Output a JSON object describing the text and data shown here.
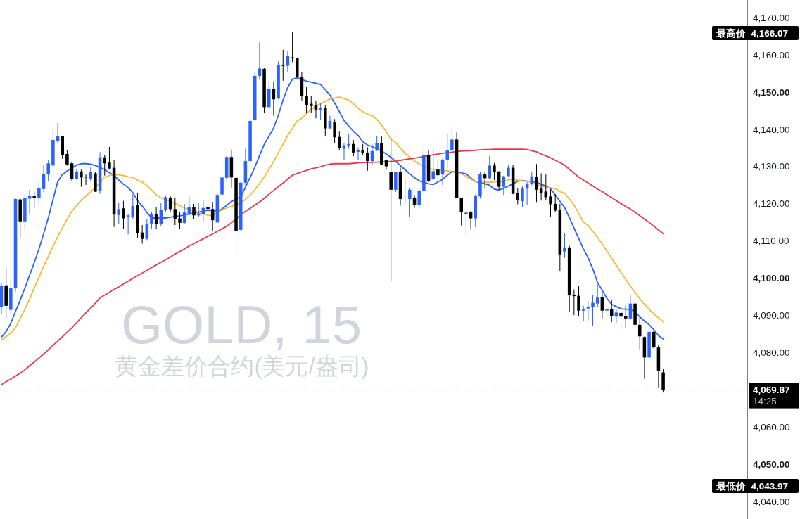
{
  "chart_data": {
    "type": "candlestick",
    "title": "GOLD, 15",
    "subtitle": "黄金差价合约(美元/盎司)",
    "categories": [
      null,
      null,
      null,
      null,
      null,
      null,
      null,
      null,
      null,
      null,
      null,
      null,
      null,
      null,
      null,
      null,
      null,
      null,
      null,
      null,
      null,
      null,
      null,
      null,
      null,
      null,
      null,
      null,
      null,
      null,
      null,
      null,
      null,
      null,
      null,
      null,
      null,
      null,
      null,
      null,
      null,
      null,
      null,
      null,
      null,
      null,
      null,
      null,
      null,
      null,
      null,
      null,
      null,
      null,
      null,
      null,
      null,
      null,
      null,
      null,
      null,
      null,
      null,
      null,
      null,
      null,
      null,
      null,
      null,
      null,
      null,
      null,
      null,
      null,
      null,
      null,
      null,
      null,
      null,
      null,
      null,
      null,
      null,
      null,
      null,
      null,
      null,
      null,
      null,
      null,
      null,
      null,
      null,
      null,
      null,
      null,
      null,
      null,
      null,
      null,
      null,
      null,
      null,
      null,
      null,
      null,
      null,
      null,
      null,
      null,
      null,
      null,
      null,
      null,
      null,
      null,
      null,
      null,
      null,
      null,
      null,
      null,
      null,
      null,
      null,
      null,
      null,
      null,
      null,
      null,
      null,
      null,
      null,
      null,
      null,
      null,
      null,
      null,
      null,
      null,
      null,
      null
    ],
    "ohlc": [
      [
        4092.2,
        4098.5,
        4090.3,
        4097.9
      ],
      [
        4098.0,
        4102.6,
        4089.2,
        4092.5
      ],
      [
        4091.4,
        4099.1,
        4090.6,
        4097.2
      ],
      [
        4097.2,
        4121.5,
        4096.3,
        4121.2
      ],
      [
        4121.1,
        4121.5,
        4110.8,
        4115.2
      ],
      [
        4115.2,
        4122.4,
        4112.7,
        4121.4
      ],
      [
        4121.3,
        4123.7,
        4117.1,
        4122.1
      ],
      [
        4122.0,
        4123.2,
        4118.7,
        4121.6
      ],
      [
        4121.5,
        4125.9,
        4119.6,
        4124.1
      ],
      [
        4123.9,
        4130.3,
        4123.1,
        4128.0
      ],
      [
        4127.9,
        4131.6,
        4126.1,
        4130.8
      ],
      [
        4130.2,
        4140.4,
        4129.1,
        4137.1
      ],
      [
        4136.8,
        4141.6,
        4136.3,
        4138.1
      ],
      [
        4138.1,
        4138.2,
        4132.0,
        4133.1
      ],
      [
        4133.3,
        4134.3,
        4130.2,
        4130.5
      ],
      [
        4130.8,
        4131.3,
        4126.1,
        4126.5
      ],
      [
        4126.7,
        4129.1,
        4126.4,
        4128.6
      ],
      [
        4128.6,
        4129.1,
        4124.5,
        4127.0
      ],
      [
        4127.2,
        4127.8,
        4125.0,
        4127.0
      ],
      [
        4126.5,
        4129.7,
        4125.9,
        4128.4
      ],
      [
        4128.1,
        4128.4,
        4123.1,
        4123.2
      ],
      [
        4123.4,
        4133.8,
        4122.6,
        4132.4
      ],
      [
        4132.4,
        4133.1,
        4127.5,
        4130.8
      ],
      [
        4131.0,
        4135.2,
        4129.1,
        4129.4
      ],
      [
        4129.6,
        4131.8,
        4113.7,
        4117.1
      ],
      [
        4116.9,
        4120.2,
        4114.6,
        4118.5
      ],
      [
        4118.7,
        4120.7,
        4113.1,
        4116.0
      ],
      [
        4116.5,
        4117.1,
        4111.7,
        4116.8
      ],
      [
        4116.3,
        4122.4,
        4115.8,
        4119.3
      ],
      [
        4119.5,
        4122.9,
        4110.8,
        4112.0
      ],
      [
        4112.2,
        4114.2,
        4109.2,
        4110.5
      ],
      [
        4110.5,
        4115.8,
        4110.2,
        4114.4
      ],
      [
        4114.6,
        4117.7,
        4113.3,
        4117.1
      ],
      [
        4117.2,
        4119.0,
        4113.1,
        4114.4
      ],
      [
        4114.4,
        4120.1,
        4114.0,
        4118.2
      ],
      [
        4118.2,
        4122.1,
        4117.7,
        4121.7
      ],
      [
        4121.6,
        4122.1,
        4117.7,
        4118.5
      ],
      [
        4118.5,
        4121.6,
        4114.2,
        4115.8
      ],
      [
        4116.0,
        4117.7,
        4113.1,
        4114.8
      ],
      [
        4114.8,
        4119.9,
        4114.6,
        4117.6
      ],
      [
        4117.0,
        4121.8,
        4116.8,
        4119.1
      ],
      [
        4119.0,
        4119.9,
        4115.8,
        4116.8
      ],
      [
        4116.8,
        4120.2,
        4116.3,
        4117.3
      ],
      [
        4117.1,
        4120.9,
        4115.2,
        4118.8
      ],
      [
        4119.0,
        4122.9,
        4117.4,
        4118.5
      ],
      [
        4118.5,
        4120.4,
        4112.5,
        4115.5
      ],
      [
        4114.9,
        4122.9,
        4114.8,
        4122.3
      ],
      [
        4122.4,
        4127.4,
        4121.8,
        4127.0
      ],
      [
        4126.9,
        4132.8,
        4126.2,
        4132.5
      ],
      [
        4132.5,
        4134.3,
        4124.3,
        4127.0
      ],
      [
        4126.9,
        4127.5,
        4105.8,
        4112.7
      ],
      [
        4112.9,
        4125.9,
        4112.7,
        4125.6
      ],
      [
        4125.6,
        4134.7,
        4124.9,
        4131.4
      ],
      [
        4131.4,
        4146.7,
        4131.2,
        4142.2
      ],
      [
        4142.5,
        4155.5,
        4142.3,
        4154.3
      ],
      [
        4154.3,
        4163.3,
        4153.3,
        4156.3
      ],
      [
        4156.2,
        4156.5,
        4144.4,
        4145.9
      ],
      [
        4145.9,
        4152.8,
        4145.7,
        4150.7
      ],
      [
        4150.7,
        4152.8,
        4143.6,
        4148.0
      ],
      [
        4148.3,
        4158.2,
        4148.0,
        4157.3
      ],
      [
        4157.3,
        4161.3,
        4153.0,
        4157.0
      ],
      [
        4157.0,
        4160.9,
        4155.2,
        4159.6
      ],
      [
        4159.3,
        4166.07,
        4158.0,
        4159.0
      ],
      [
        4159.1,
        4159.2,
        4153.8,
        4154.1
      ],
      [
        4154.1,
        4155.3,
        4147.7,
        4148.9
      ],
      [
        4149.0,
        4151.3,
        4144.4,
        4146.5
      ],
      [
        4146.8,
        4148.9,
        4144.4,
        4146.2
      ],
      [
        4146.5,
        4147.7,
        4142.9,
        4145.1
      ],
      [
        4145.2,
        4146.9,
        4142.5,
        4145.7
      ],
      [
        4145.6,
        4146.4,
        4138.2,
        4140.2
      ],
      [
        4140.2,
        4143.6,
        4140.1,
        4142.2
      ],
      [
        4142.0,
        4142.7,
        4136.3,
        4137.8
      ],
      [
        4137.9,
        4139.5,
        4134.4,
        4134.9
      ],
      [
        4134.7,
        4136.3,
        4131.6,
        4135.6
      ],
      [
        4135.6,
        4138.8,
        4134.7,
        4136.0
      ],
      [
        4136.0,
        4137.1,
        4132.7,
        4133.7
      ],
      [
        4133.9,
        4135.1,
        4131.6,
        4134.3
      ],
      [
        4134.3,
        4136.0,
        4132.9,
        4133.7
      ],
      [
        4133.7,
        4135.1,
        4128.8,
        4131.4
      ],
      [
        4131.4,
        4135.9,
        4130.3,
        4134.1
      ],
      [
        4134.4,
        4138.1,
        4134.1,
        4136.2
      ],
      [
        4136.3,
        4138.1,
        4130.3,
        4130.5
      ],
      [
        4131.6,
        4131.8,
        4129.1,
        4130.0
      ],
      [
        4128.4,
        4137.6,
        4099.1,
        4123.7
      ],
      [
        4123.7,
        4128.6,
        4123.1,
        4128.4
      ],
      [
        4128.4,
        4129.7,
        4119.4,
        4121.2
      ],
      [
        4121.5,
        4126.5,
        4119.9,
        4121.6
      ],
      [
        4121.2,
        4124.3,
        4116.3,
        4123.7
      ],
      [
        4121.6,
        4122.3,
        4118.8,
        4119.6
      ],
      [
        4119.6,
        4124.3,
        4118.7,
        4123.5
      ],
      [
        4123.4,
        4134.1,
        4122.4,
        4133.1
      ],
      [
        4133.1,
        4134.4,
        4125.7,
        4126.1
      ],
      [
        4126.5,
        4134.7,
        4126.3,
        4128.7
      ],
      [
        4129.1,
        4132.0,
        4126.8,
        4127.6
      ],
      [
        4127.8,
        4132.2,
        4125.0,
        4131.8
      ],
      [
        4131.8,
        4138.9,
        4129.4,
        4134.3
      ],
      [
        4134.3,
        4140.8,
        4133.9,
        4137.2
      ],
      [
        4137.2,
        4139.1,
        4121.4,
        4121.5
      ],
      [
        4121.5,
        4121.6,
        4114.1,
        4117.7
      ],
      [
        4117.5,
        4117.7,
        4111.7,
        4117.4
      ],
      [
        4117.6,
        4118.0,
        4113.2,
        4116.0
      ],
      [
        4116.0,
        4122.4,
        4113.6,
        4122.1
      ],
      [
        4121.9,
        4128.6,
        4121.3,
        4128.0
      ],
      [
        4127.8,
        4128.6,
        4124.0,
        4126.8
      ],
      [
        4126.8,
        4132.8,
        4126.5,
        4130.2
      ],
      [
        4130.2,
        4130.9,
        4126.3,
        4128.4
      ],
      [
        4128.6,
        4128.7,
        4123.7,
        4124.5
      ],
      [
        4124.5,
        4127.5,
        4122.3,
        4127.3
      ],
      [
        4127.4,
        4130.3,
        4127.2,
        4129.6
      ],
      [
        4129.6,
        4130.3,
        4122.5,
        4122.6
      ],
      [
        4122.9,
        4124.1,
        4119.8,
        4120.9
      ],
      [
        4120.6,
        4124.6,
        4119.1,
        4124.0
      ],
      [
        4124.0,
        4125.7,
        4119.6,
        4125.2
      ],
      [
        4125.2,
        4128.4,
        4124.9,
        4127.3
      ],
      [
        4127.1,
        4130.6,
        4120.4,
        4123.7
      ],
      [
        4124.0,
        4128.1,
        4120.8,
        4122.7
      ],
      [
        4123.2,
        4127.8,
        4120.8,
        4121.7
      ],
      [
        4121.9,
        4123.8,
        4116.4,
        4119.8
      ],
      [
        4119.9,
        4122.5,
        4117.7,
        4118.1
      ],
      [
        4118.3,
        4119.9,
        4101.9,
        4106.3
      ],
      [
        4107.1,
        4112.0,
        4105.4,
        4108.2
      ],
      [
        4108.2,
        4108.7,
        4091.0,
        4095.3
      ],
      [
        4095.3,
        4096.9,
        4090.0,
        4095.1
      ],
      [
        4095.2,
        4097.8,
        4089.8,
        4091.2
      ],
      [
        4091.2,
        4092.5,
        4088.5,
        4091.7
      ],
      [
        4091.8,
        4093.7,
        4088.5,
        4092.3
      ],
      [
        4092.2,
        4095.4,
        4087.0,
        4093.3
      ],
      [
        4093.1,
        4098.3,
        4092.2,
        4094.7
      ],
      [
        4094.8,
        4095.9,
        4089.1,
        4091.2
      ],
      [
        4091.2,
        4093.1,
        4088.4,
        4091.7
      ],
      [
        4091.7,
        4094.1,
        4088.1,
        4089.8
      ],
      [
        4089.6,
        4091.5,
        4087.9,
        4090.7
      ],
      [
        4090.6,
        4092.3,
        4086.0,
        4089.6
      ],
      [
        4089.8,
        4092.8,
        4086.5,
        4089.1
      ],
      [
        4089.1,
        4095.3,
        4089.0,
        4093.1
      ],
      [
        4093.1,
        4093.7,
        4086.8,
        4087.4
      ],
      [
        4087.4,
        4089.3,
        4080.8,
        4084.3
      ],
      [
        4084.1,
        4084.3,
        4072.9,
        4078.6
      ],
      [
        4078.6,
        4087.4,
        4077.8,
        4085.5
      ],
      [
        4085.5,
        4085.9,
        4080.9,
        4081.3
      ],
      [
        4081.3,
        4082.1,
        4070.4,
        4075.1
      ],
      [
        4074.6,
        4075.5,
        4069.2,
        4069.87
      ]
    ],
    "colors": [
      "#2962ff",
      "#000000",
      "#2962ff",
      "#2962ff",
      "#000000",
      "#2962ff",
      "#2962ff",
      "#000000",
      "#2962ff",
      "#2962ff",
      "#2962ff",
      "#2962ff",
      "#2962ff",
      "#000000",
      "#000000",
      "#000000",
      "#2962ff",
      "#000000",
      "#000000",
      "#2962ff",
      "#000000",
      "#2962ff",
      "#000000",
      "#000000",
      "#000000",
      "#2962ff",
      "#000000",
      "#2962ff",
      "#2962ff",
      "#000000",
      "#000000",
      "#2962ff",
      "#2962ff",
      "#000000",
      "#2962ff",
      "#2962ff",
      "#000000",
      "#000000",
      "#000000",
      "#2962ff",
      "#2962ff",
      "#000000",
      "#2962ff",
      "#2962ff",
      "#000000",
      "#000000",
      "#2962ff",
      "#2962ff",
      "#2962ff",
      "#000000",
      "#000000",
      "#2962ff",
      "#2962ff",
      "#2962ff",
      "#2962ff",
      "#2962ff",
      "#000000",
      "#2962ff",
      "#000000",
      "#2962ff",
      "#000000",
      "#2962ff",
      "#000000",
      "#000000",
      "#000000",
      "#000000",
      "#000000",
      "#000000",
      "#2962ff",
      "#000000",
      "#2962ff",
      "#000000",
      "#000000",
      "#2962ff",
      "#2962ff",
      "#000000",
      "#2962ff",
      "#000000",
      "#000000",
      "#2962ff",
      "#2962ff",
      "#000000",
      "#000000",
      "#000000",
      "#2962ff",
      "#000000",
      "#2962ff",
      "#2962ff",
      "#000000",
      "#2962ff",
      "#2962ff",
      "#000000",
      "#2962ff",
      "#000000",
      "#2962ff",
      "#2962ff",
      "#2962ff",
      "#000000",
      "#000000",
      "#000000",
      "#000000",
      "#2962ff",
      "#2962ff",
      "#000000",
      "#2962ff",
      "#000000",
      "#000000",
      "#2962ff",
      "#2962ff",
      "#000000",
      "#000000",
      "#2962ff",
      "#2962ff",
      "#2962ff",
      "#000000",
      "#000000",
      "#000000",
      "#000000",
      "#000000",
      "#000000",
      "#2962ff",
      "#000000",
      "#000000",
      "#000000",
      "#2962ff",
      "#2962ff",
      "#2962ff",
      "#2962ff",
      "#000000",
      "#2962ff",
      "#000000",
      "#2962ff",
      "#000000",
      "#000000",
      "#2962ff",
      "#000000",
      "#000000",
      "#000000",
      "#2962ff",
      "#000000",
      "#000000",
      "#000000"
    ],
    "series": [
      {
        "type": "line",
        "color": "#2962ff",
        "values": [
          4084.1,
          4085.6,
          4087.8,
          4091.0,
          4094.0,
          4097.3,
          4100.7,
          4104.1,
          4107.8,
          4111.9,
          4116.2,
          4121.1,
          4125.9,
          4127.8,
          4128.7,
          4129.6,
          4130.3,
          4130.7,
          4130.7,
          4130.6,
          4130.2,
          4129.7,
          4129.1,
          4128.3,
          4127.6,
          4126.3,
          4125.2,
          4124.3,
          4122.9,
          4120.8,
          4119.3,
          4117.6,
          4116.1,
          4116.1,
          4116.1,
          4116.1,
          4116.3,
          4116.5,
          4116.7,
          4116.9,
          4117.2,
          4117.4,
          4117.7,
          4117.9,
          4118.2,
          4118.1,
          4118.0,
          4118.5,
          4119.5,
          4120.5,
          4121.2,
          4121.8,
          4124.4,
          4127.0,
          4129.8,
          4132.9,
          4135.9,
          4138.1,
          4140.3,
          4143.7,
          4147.8,
          4151.2,
          4153.4,
          4153.8,
          4153.3,
          4152.9,
          4152.6,
          4152.3,
          4152.0,
          4150.6,
          4149.1,
          4147.0,
          4144.7,
          4142.3,
          4140.8,
          4139.4,
          4138.3,
          4136.6,
          4135.7,
          4135.3,
          4134.7,
          4134.1,
          4133.3,
          4132.4,
          4131.3,
          4130.2,
          4129.1,
          4128.0,
          4126.9,
          4126.1,
          4125.7,
          4125.3,
          4125.1,
          4125.8,
          4126.5,
          4127.6,
          4128.6,
          4128.4,
          4128.2,
          4128.0,
          4126.9,
          4125.9,
          4125.6,
          4125.3,
          4124.9,
          4123.9,
          4123.6,
          4124.1,
          4124.7,
          4125.3,
          4126.0,
          4126.2,
          4126.0,
          4125.9,
          4125.7,
          4125.2,
          4124.7,
          4124.0,
          4122.3,
          4120.6,
          4118.9,
          4116.2,
          4113.4,
          4110.6,
          4107.8,
          4105.4,
          4102.4,
          4098.8,
          4096.7,
          4094.5,
          4092.9,
          4092.3,
          4091.7,
          4091.6,
          4091.5,
          4091.0,
          4089.5,
          4088.4,
          4087.4,
          4086.1,
          4084.5,
          4083.6
        ]
      },
      {
        "type": "line",
        "color": "#f5b935",
        "values": [
          4083.3,
          4084.2,
          4085.2,
          4086.6,
          4089.1,
          4091.6,
          4094.3,
          4097.3,
          4100.2,
          4103.1,
          4105.8,
          4108.5,
          4111.1,
          4113.4,
          4115.8,
          4117.9,
          4119.4,
          4120.9,
          4122.0,
          4123.1,
          4124.3,
          4125.7,
          4127.1,
          4127.5,
          4127.7,
          4127.7,
          4127.5,
          4127.2,
          4127.0,
          4126.3,
          4125.8,
          4124.8,
          4123.6,
          4122.3,
          4121.5,
          4121.1,
          4120.6,
          4120.0,
          4119.4,
          4118.8,
          4118.4,
          4118.0,
          4117.6,
          4117.2,
          4116.9,
          4116.7,
          4117.5,
          4118.3,
          4118.8,
          4119.2,
          4119.6,
          4120.2,
          4121.1,
          4122.3,
          4123.7,
          4125.4,
          4127.1,
          4129.2,
          4131.3,
          4133.6,
          4136.0,
          4138.3,
          4140.2,
          4142.2,
          4142.9,
          4144.2,
          4145.3,
          4146.2,
          4146.8,
          4147.4,
          4148.1,
          4148.4,
          4148.6,
          4148.2,
          4147.8,
          4146.8,
          4145.6,
          4144.7,
          4144.0,
          4143.6,
          4142.6,
          4141.1,
          4139.3,
          4137.3,
          4136.4,
          4134.9,
          4133.5,
          4132.5,
          4131.4,
          4130.6,
          4130.1,
          4129.6,
          4129.1,
          4129.0,
          4128.9,
          4128.8,
          4128.5,
          4128.3,
          4128.0,
          4127.3,
          4126.5,
          4125.9,
          4125.8,
          4125.7,
          4125.7,
          4125.8,
          4125.9,
          4125.9,
          4126.4,
          4126.5,
          4126.3,
          4126.1,
          4126.0,
          4125.6,
          4125.2,
          4124.7,
          4124.4,
          4124.2,
          4124.0,
          4123.2,
          4122.8,
          4121.2,
          4119.6,
          4117.3,
          4115.0,
          4114.1,
          4112.5,
          4110.9,
          4109.1,
          4107.2,
          4105.3,
          4103.4,
          4101.5,
          4099.6,
          4097.8,
          4096.1,
          4094.4,
          4092.9,
          4091.6,
          4090.3,
          4089.3,
          4088.2
        ]
      },
      {
        "type": "line",
        "color": "#e5394f",
        "values": [
          4071.3,
          4072.1,
          4072.8,
          4073.6,
          4074.4,
          4075.3,
          4076.4,
          4077.4,
          4078.5,
          4079.5,
          4080.7,
          4081.9,
          4083.0,
          4084.2,
          4085.4,
          4086.6,
          4087.9,
          4089.3,
          4090.6,
          4091.9,
          4093.2,
          4094.6,
          4095.4,
          4096.1,
          4096.9,
          4097.6,
          4098.4,
          4099.1,
          4099.9,
          4100.6,
          4101.3,
          4102.0,
          4102.8,
          4103.5,
          4104.2,
          4104.9,
          4105.6,
          4106.4,
          4107.1,
          4107.8,
          4108.6,
          4109.2,
          4109.9,
          4110.5,
          4111.2,
          4111.8,
          4112.5,
          4113.2,
          4113.9,
          4114.8,
          4115.9,
          4117.0,
          4117.9,
          4118.7,
          4119.6,
          4120.4,
          4121.4,
          4122.5,
          4123.5,
          4124.5,
          4125.5,
          4126.6,
          4127.6,
          4128.1,
          4128.5,
          4128.9,
          4129.3,
          4129.6,
          4129.9,
          4130.3,
          4130.6,
          4130.7,
          4130.7,
          4130.7,
          4130.7,
          4130.8,
          4130.9,
          4131.0,
          4131.0,
          4131.1,
          4131.1,
          4131.2,
          4131.3,
          4131.3,
          4131.4,
          4131.6,
          4131.8,
          4132.0,
          4132.2,
          4132.4,
          4132.6,
          4132.9,
          4133.1,
          4133.3,
          4133.5,
          4133.6,
          4133.8,
          4134.0,
          4134.1,
          4134.2,
          4134.2,
          4134.3,
          4134.4,
          4134.5,
          4134.5,
          4134.6,
          4134.6,
          4134.6,
          4134.6,
          4134.6,
          4134.6,
          4134.6,
          4134.5,
          4134.2,
          4133.9,
          4133.3,
          4132.8,
          4132.3,
          4131.6,
          4131.0,
          4130.3,
          4129.2,
          4128.1,
          4127.1,
          4126.3,
          4125.5,
          4124.7,
          4123.9,
          4123.2,
          4122.4,
          4121.6,
          4120.8,
          4120.0,
          4119.2,
          4118.5,
          4117.6,
          4116.7,
          4115.8,
          4114.9,
          4113.9,
          4112.9,
          4111.9
        ]
      }
    ],
    "ylim": [
      4035.2,
      4174.7
    ],
    "yticks": [
      {
        "value": 4040,
        "label": "4,040.00"
      },
      {
        "value": 4050,
        "label": "4,050.00"
      },
      {
        "value": 4060,
        "label": "4,060.00"
      },
      {
        "value": 4080,
        "label": "4,080.00"
      },
      {
        "value": 4090,
        "label": "4,090.00"
      },
      {
        "value": 4100,
        "label": "4,100.00"
      },
      {
        "value": 4110,
        "label": "4,110.00"
      },
      {
        "value": 4120,
        "label": "4,120.00"
      },
      {
        "value": 4130,
        "label": "4,130.00"
      },
      {
        "value": 4140,
        "label": "4,140.00"
      },
      {
        "value": 4150,
        "label": "4,150.00"
      },
      {
        "value": 4160,
        "label": "4,160.00"
      },
      {
        "value": 4170,
        "label": "4,170.00"
      }
    ],
    "tick_labels": "y",
    "ref_lines": [
      {
        "axis": "y",
        "value": 4069.87,
        "label": "4,069.87\n14:25",
        "color": "#000000",
        "line_style": "dotted"
      }
    ],
    "annotations": [
      "最高价 4,166.07",
      "最低价 4,043.97"
    ]
  }
}
